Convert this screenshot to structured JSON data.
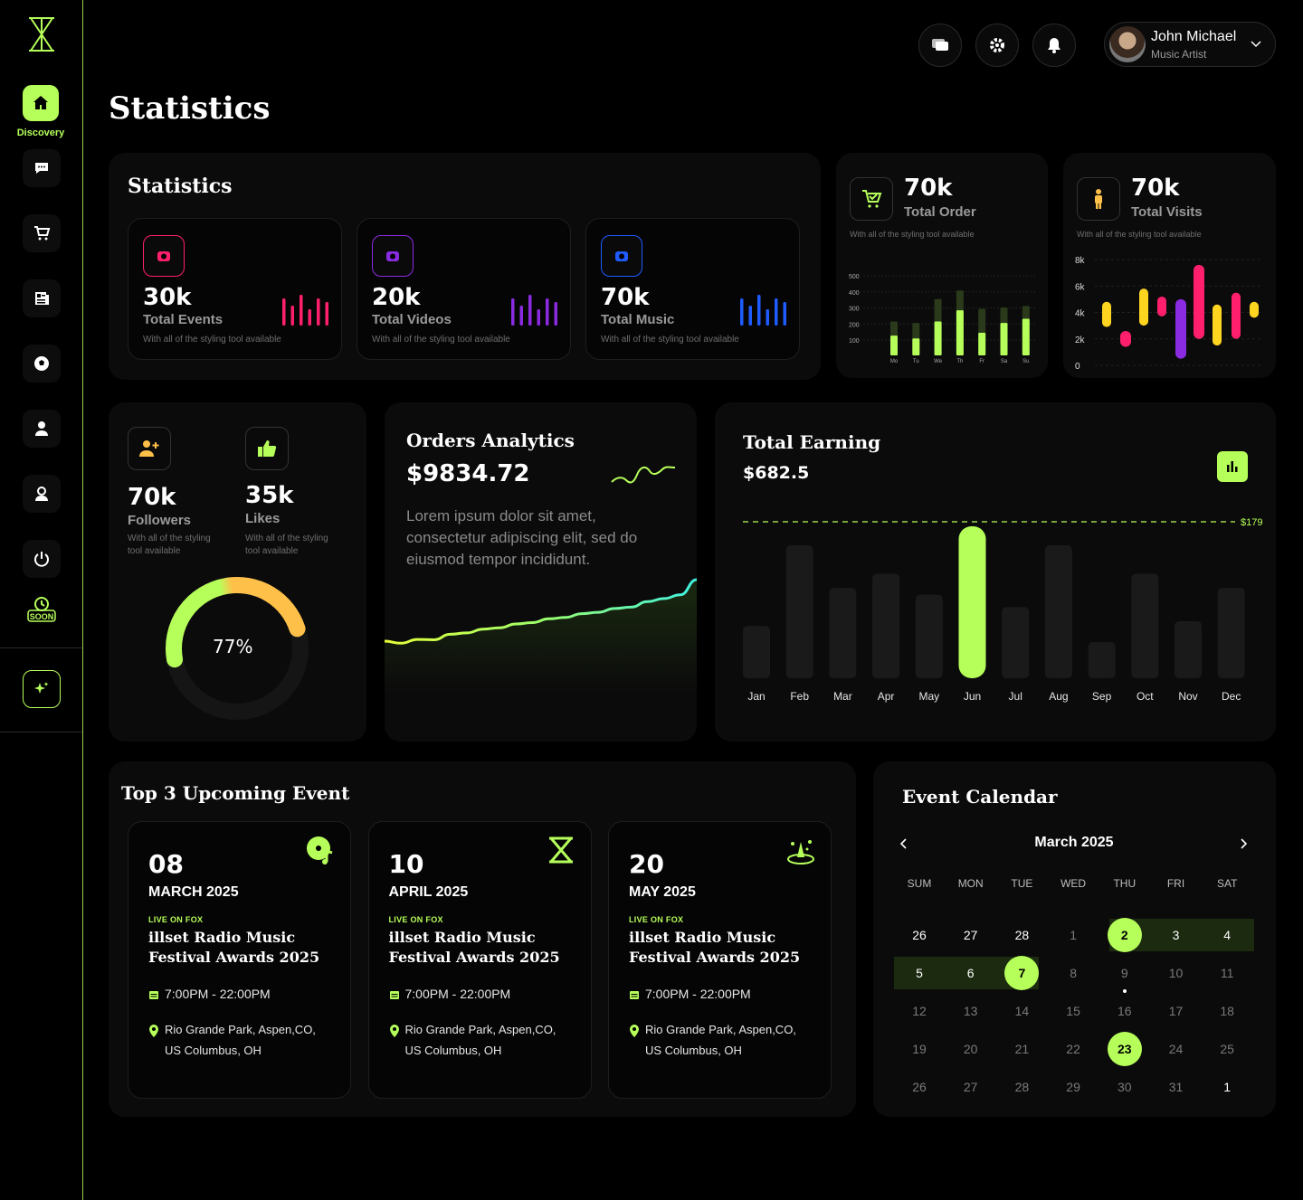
{
  "colors": {
    "accent": "#b6ff5a",
    "pink": "#ff1f6d",
    "purple": "#8a2be2",
    "blue": "#1f5bff",
    "yellow": "#ffd51f",
    "orange": "#ffc04a"
  },
  "sidebar": {
    "brand_icon": "logo-icon",
    "active_label": "Discovery",
    "items": [
      "home-icon",
      "chat-icon",
      "cart-icon",
      "news-icon",
      "soccer-icon",
      "user-icon",
      "profile-icon",
      "power-icon",
      "soon-icon",
      "sparkle-icon"
    ]
  },
  "header": {
    "user_name": "John Michael",
    "user_role": "Music Artist"
  },
  "page_title": "Statistics",
  "stats": {
    "title": "Statistics",
    "cards": [
      {
        "value": "30k",
        "label": "Total Events",
        "desc": "With all of the styling tool available",
        "color": "#ff1f6d"
      },
      {
        "value": "20k",
        "label": "Total Videos",
        "desc": "With all of the styling tool available",
        "color": "#8a2be2"
      },
      {
        "value": "70k",
        "label": "Total Music",
        "desc": "With all of the styling tool available",
        "color": "#1f5bff"
      }
    ]
  },
  "total_order": {
    "value": "70k",
    "label": "Total Order",
    "desc": "With all of the styling tool available",
    "y_ticks": [
      "500",
      "400",
      "300",
      "200",
      "100"
    ],
    "days": [
      "Mo",
      "Tu",
      "We",
      "Th",
      "Fr",
      "Sa",
      "Su"
    ]
  },
  "total_visits": {
    "value": "70k",
    "label": "Total Visits",
    "desc": "With all of the styling tool available",
    "y_ticks": [
      "8k",
      "6k",
      "4k",
      "2k",
      "0"
    ]
  },
  "social": {
    "followers": {
      "value": "70k",
      "label": "Followers",
      "desc": "With all of the styling tool available"
    },
    "likes": {
      "value": "35k",
      "label": "Likes",
      "desc": "With all of the styling tool available"
    },
    "progress": "77%"
  },
  "orders": {
    "title": "Orders Analytics",
    "amount": "$9834.72",
    "text": "Lorem ipsum dolor sit amet, consectetur adipiscing elit, sed do eiusmod tempor incididunt."
  },
  "earning": {
    "title": "Total Earning",
    "amount": "$682.5",
    "line_label": "$179"
  },
  "chart_data": [
    {
      "type": "bar",
      "title": "Total Order",
      "categories": [
        "Mo",
        "Tu",
        "We",
        "Th",
        "Fr",
        "Sa",
        "Su"
      ],
      "ylim": [
        0,
        500
      ],
      "series": [
        {
          "values": [
            140,
            120,
            240,
            320,
            160,
            230,
            260
          ]
        },
        {
          "values": [
            240,
            230,
            400,
            460,
            330,
            340,
            350
          ]
        }
      ]
    },
    {
      "type": "bar",
      "title": "Total Visits",
      "ylim": [
        0,
        8000
      ],
      "series": [
        {
          "values": [
            [
              2900,
              4800
            ],
            [
              1400,
              2600
            ],
            [
              3000,
              5800
            ],
            [
              3700,
              5200
            ],
            [
              500,
              5000
            ],
            [
              2000,
              7600
            ],
            [
              1500,
              4600
            ],
            [
              2000,
              5500
            ],
            [
              3600,
              4800
            ]
          ]
        }
      ]
    },
    {
      "type": "bar",
      "title": "Total Earning",
      "categories": [
        "Jan",
        "Feb",
        "Mar",
        "Apr",
        "May",
        "Jun",
        "Jul",
        "Aug",
        "Sep",
        "Oct",
        "Nov",
        "Dec"
      ],
      "values": [
        55,
        140,
        95,
        110,
        88,
        160,
        75,
        140,
        38,
        110,
        60,
        95
      ],
      "highlight": "Jun",
      "reference_line": "$179"
    },
    {
      "type": "line",
      "title": "Orders Analytics",
      "values": [
        20,
        26,
        22,
        30,
        28,
        38,
        34,
        44,
        40,
        50,
        46,
        56,
        52,
        62,
        58,
        68,
        66,
        78,
        74,
        100
      ]
    },
    {
      "type": "pie",
      "values": [
        77,
        23
      ]
    }
  ],
  "events": {
    "title": "Top 3 Upcoming Event",
    "items": [
      {
        "day": "08",
        "month": "MARCH 2025",
        "tag": "LIVE ON FOX",
        "title": "illset Radio Music Festival Awards 2025",
        "time": "7:00PM - 22:00PM",
        "location": "Rio Grande Park, Aspen,CO, US Columbus, OH",
        "icon": "music-disc-icon"
      },
      {
        "day": "10",
        "month": "APRIL 2025",
        "tag": "LIVE ON FOX",
        "title": "illset Radio Music Festival Awards 2025",
        "time": "7:00PM - 22:00PM",
        "location": "Rio Grande Park, Aspen,CO, US Columbus, OH",
        "icon": "trophy-icon"
      },
      {
        "day": "20",
        "month": "MAY 2025",
        "tag": "LIVE ON FOX",
        "title": "illset Radio Music Festival Awards 2025",
        "time": "7:00PM - 22:00PM",
        "location": "Rio Grande Park, Aspen,CO, US Columbus, OH",
        "icon": "stage-icon"
      }
    ]
  },
  "calendar": {
    "title": "Event Calendar",
    "month": "March 2025",
    "weekdays": [
      "SUM",
      "MON",
      "TUE",
      "WED",
      "THU",
      "FRI",
      "SAT"
    ],
    "weeks": [
      [
        "26",
        "27",
        "28",
        "1",
        "2",
        "3",
        "4"
      ],
      [
        "5",
        "6",
        "7",
        "8",
        "9",
        "10",
        "11"
      ],
      [
        "12",
        "13",
        "14",
        "15",
        "16",
        "17",
        "18"
      ],
      [
        "19",
        "20",
        "21",
        "22",
        "23",
        "24",
        "25"
      ],
      [
        "26",
        "27",
        "28",
        "29",
        "30",
        "31",
        "1"
      ]
    ]
  }
}
